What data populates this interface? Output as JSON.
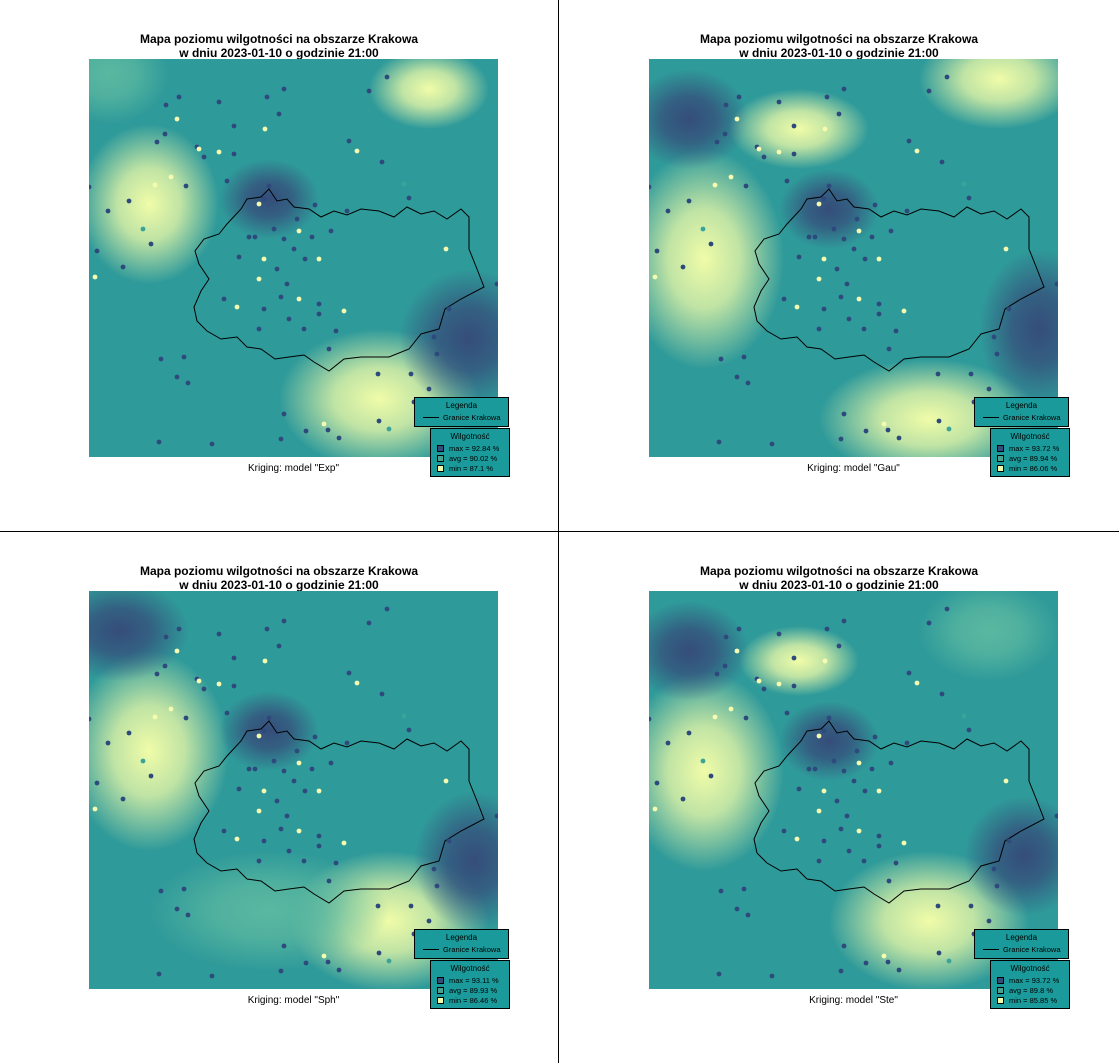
{
  "panels": [
    {
      "title_line1": "Mapa poziomu wilgotności na obszarze Krakowa",
      "title_line2": "w dniu 2023-01-10 o godzinie 21:00",
      "caption": "Kriging: model \"Exp\"",
      "legend_title": "Legenda",
      "legend_line_label": "Granice Krakowa",
      "scale_title": "Wilgotność",
      "max": "max =  92.84 %",
      "avg": "avg =  90.02 %",
      "min": "min =  87.1 %"
    },
    {
      "title_line1": "Mapa poziomu wilgotności na obszarze Krakowa",
      "title_line2": "w dniu 2023-01-10 o godzinie 21:00",
      "caption": "Kriging: model \"Gau\"",
      "legend_title": "Legenda",
      "legend_line_label": "Granice Krakowa",
      "scale_title": "Wilgotność",
      "max": "max =  93.72 %",
      "avg": "avg =  89.94 %",
      "min": "min =  86.06 %"
    },
    {
      "title_line1": "Mapa poziomu wilgotności na obszarze Krakowa",
      "title_line2": "w dniu 2023-01-10 o godzinie 21:00",
      "caption": "Kriging: model \"Sph\"",
      "legend_title": "Legenda",
      "legend_line_label": "Granice Krakowa",
      "scale_title": "Wilgotność",
      "max": "max =  93.11 %",
      "avg": "avg =  89.93 %",
      "min": "min =  86.46 %"
    },
    {
      "title_line1": "Mapa poziomu wilgotności na obszarze Krakowa",
      "title_line2": "w dniu 2023-01-10 o godzinie 21:00",
      "caption": "Kriging: model \"Ste\"",
      "legend_title": "Legenda",
      "legend_line_label": "Granice Krakowa",
      "scale_title": "Wilgotność",
      "max": "max =  93.72 %",
      "avg": "avg =  89.8 %",
      "min": "min =  85.85 %"
    }
  ],
  "colors": {
    "map_base": "#2f9a9a",
    "high_humidity": "#354d7a",
    "low_humidity": "#f0fca8",
    "mid": "#5ab8a0",
    "legend_bg": "#1a9a9a",
    "station_high": "#2e4a7c",
    "station_low": "#f6fbb0"
  }
}
